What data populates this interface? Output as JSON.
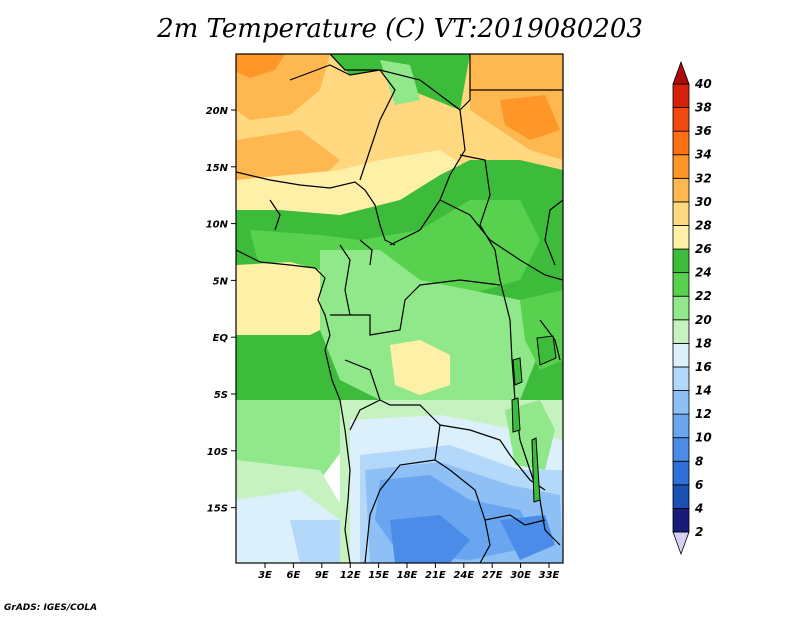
{
  "title": "2m Temperature (C) VT:2019080203",
  "credit": "GrADS: IGES/COLA",
  "map": {
    "lon_ticks": [
      "3E",
      "6E",
      "9E",
      "12E",
      "15E",
      "18E",
      "21E",
      "24E",
      "27E",
      "30E",
      "33E"
    ],
    "lat_ticks": [
      "20N",
      "15N",
      "10N",
      "5N",
      "EQ",
      "5S",
      "10S",
      "15S"
    ]
  },
  "colorbar": {
    "levels": [
      "2",
      "4",
      "6",
      "8",
      "10",
      "12",
      "14",
      "16",
      "18",
      "20",
      "22",
      "24",
      "26",
      "28",
      "30",
      "32",
      "34",
      "36",
      "38",
      "40"
    ],
    "colors": [
      "#1a1a7a",
      "#1a4fb4",
      "#2f6fd8",
      "#4a8ce8",
      "#6aa6f0",
      "#8ec0f6",
      "#b4d8fa",
      "#dcf0fc",
      "#c6f2c0",
      "#90e88a",
      "#58d24e",
      "#3cbc3a",
      "#fff0a8",
      "#ffd880",
      "#ffb850",
      "#ff9628",
      "#ff7014",
      "#f04a10",
      "#d4220a",
      "#b00a08"
    ]
  }
}
